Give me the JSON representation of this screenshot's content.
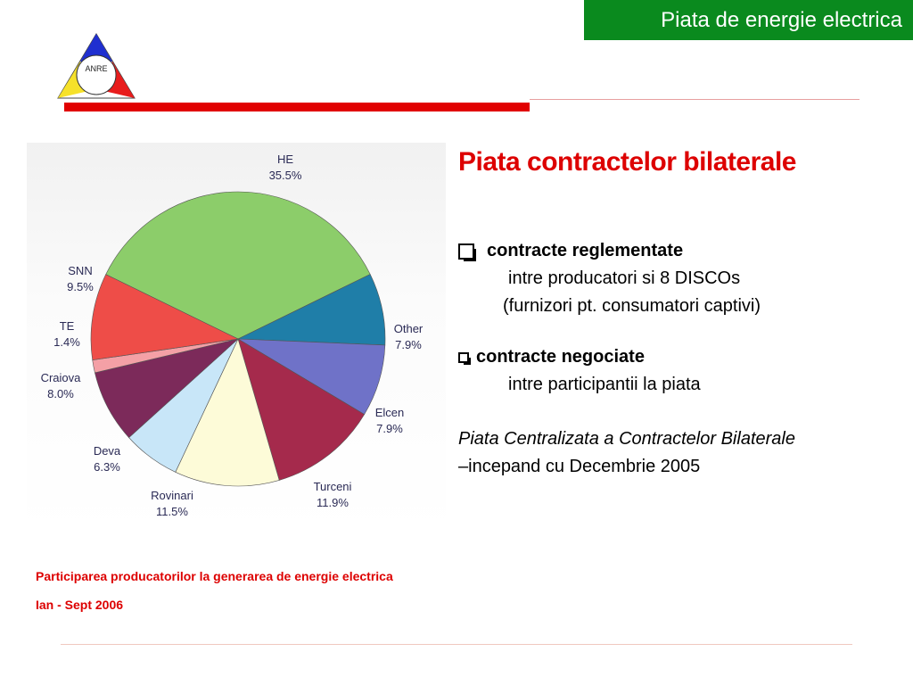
{
  "header": {
    "banner_title": "Piata de energie electrica",
    "logo_text": "ANRE",
    "banner_color": "#0a8a1e",
    "accent_color": "#e10000"
  },
  "content": {
    "heading": "Piata contractelor bilaterale",
    "bullet1": {
      "title": "contracte reglementate",
      "line1": "intre producatori si 8 DISCOs",
      "line2": "(furnizori pt. consumatori captivi)"
    },
    "bullet2": {
      "title": "contracte negociate",
      "line1": "intre participantii la piata"
    },
    "note_italic": "Piata Centralizata a Contractelor Bilaterale",
    "note_rest": "–incepand cu Decembrie 2005"
  },
  "caption": {
    "line1": "Participarea producatorilor la generarea de energie electrica",
    "line2": "Ian - Sept 2006"
  },
  "chart_data": {
    "type": "pie",
    "slices": [
      {
        "label": "HE",
        "value_label": "35.5%",
        "value": 35.5,
        "color": "#8ccd6a"
      },
      {
        "label": "Other",
        "value_label": "7.9%",
        "value": 7.9,
        "color": "#1f7ea8"
      },
      {
        "label": "Elcen",
        "value_label": "7.9%",
        "value": 7.9,
        "color": "#6f72c8"
      },
      {
        "label": "Turceni",
        "value_label": "11.9%",
        "value": 11.9,
        "color": "#a52a4c"
      },
      {
        "label": "Rovinari",
        "value_label": "11.5%",
        "value": 11.5,
        "color": "#fdfbd8"
      },
      {
        "label": "Deva",
        "value_label": "6.3%",
        "value": 6.3,
        "color": "#c8e6f8"
      },
      {
        "label": "Craiova",
        "value_label": "8.0%",
        "value": 8.0,
        "color": "#7c2a5a"
      },
      {
        "label": "TE",
        "value_label": "1.4%",
        "value": 1.4,
        "color": "#f4a0a6"
      },
      {
        "label": "SNN",
        "value_label": "9.5%",
        "value": 9.5,
        "color": "#ee4d48"
      }
    ]
  }
}
